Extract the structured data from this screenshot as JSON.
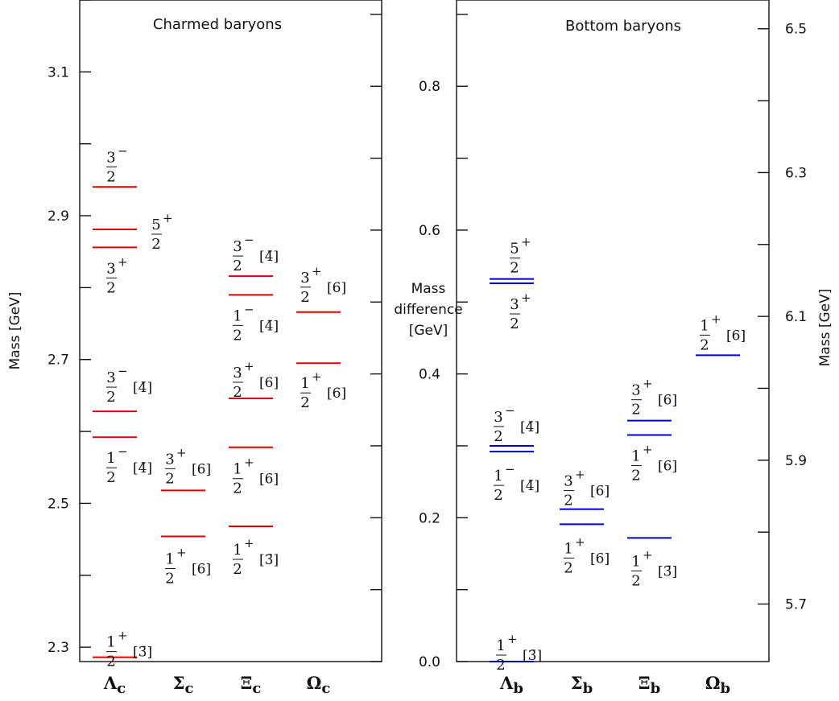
{
  "chart_data": [
    {
      "type": "level-diagram",
      "title": "Charmed baryons",
      "ylabel": "Mass [GeV]",
      "ylim": [
        2.28,
        3.2
      ],
      "ytick_labels": [
        "2.3",
        "2.5",
        "2.7",
        "2.9",
        "3.1"
      ],
      "color": "#e00000",
      "categories": [
        "Λc",
        "Σc",
        "Ξc",
        "Ωc"
      ],
      "levels": [
        {
          "category": "Λc",
          "mass": 2.286
        },
        {
          "category": "Λc",
          "mass": 2.592
        },
        {
          "category": "Λc",
          "mass": 2.628
        },
        {
          "category": "Λc",
          "mass": 2.856
        },
        {
          "category": "Λc",
          "mass": 2.881
        },
        {
          "category": "Λc",
          "mass": 2.94
        },
        {
          "category": "Σc",
          "mass": 2.454
        },
        {
          "category": "Σc",
          "mass": 2.518
        },
        {
          "category": "Ξc",
          "mass": 2.468
        },
        {
          "category": "Ξc",
          "mass": 2.578
        },
        {
          "category": "Ξc",
          "mass": 2.646
        },
        {
          "category": "Ξc",
          "mass": 2.79
        },
        {
          "category": "Ξc",
          "mass": 2.816
        },
        {
          "category": "Ωc",
          "mass": 2.695
        },
        {
          "category": "Ωc",
          "mass": 2.766
        }
      ],
      "annotations": [
        {
          "category": "Λc",
          "mass": 2.286,
          "num": "1",
          "parity": "+",
          "den": "2",
          "mult": "[3̄]"
        },
        {
          "category": "Λc",
          "mass": 2.592,
          "num": "1",
          "parity": "−",
          "den": "2",
          "mult": "[4̄]"
        },
        {
          "category": "Λc",
          "mass": 2.628,
          "num": "3",
          "parity": "−",
          "den": "2",
          "mult": "[4̄]"
        },
        {
          "category": "Λc",
          "mass": 2.856,
          "num": "3",
          "parity": "+",
          "den": "2",
          "mult": ""
        },
        {
          "category": "Λc",
          "mass": 2.881,
          "num": "5",
          "parity": "+",
          "den": "2",
          "mult": ""
        },
        {
          "category": "Λc",
          "mass": 2.94,
          "num": "3",
          "parity": "−",
          "den": "2",
          "mult": ""
        },
        {
          "category": "Σc",
          "mass": 2.454,
          "num": "1",
          "parity": "+",
          "den": "2",
          "mult": "[6]"
        },
        {
          "category": "Σc",
          "mass": 2.518,
          "num": "3",
          "parity": "+",
          "den": "2",
          "mult": "[6]"
        },
        {
          "category": "Ξc",
          "mass": 2.468,
          "num": "1",
          "parity": "+",
          "den": "2",
          "mult": "[3̄]"
        },
        {
          "category": "Ξc",
          "mass": 2.578,
          "num": "1",
          "parity": "+",
          "den": "2",
          "mult": "[6]"
        },
        {
          "category": "Ξc",
          "mass": 2.646,
          "num": "3",
          "parity": "+",
          "den": "2",
          "mult": "[6]"
        },
        {
          "category": "Ξc",
          "mass": 2.79,
          "num": "1",
          "parity": "−",
          "den": "2",
          "mult": "[4̄]"
        },
        {
          "category": "Ξc",
          "mass": 2.816,
          "num": "3",
          "parity": "−",
          "den": "2",
          "mult": "[4̄]"
        },
        {
          "category": "Ωc",
          "mass": 2.695,
          "num": "1",
          "parity": "+",
          "den": "2",
          "mult": "[6]"
        },
        {
          "category": "Ωc",
          "mass": 2.766,
          "num": "3",
          "parity": "+",
          "den": "2",
          "mult": "[6]"
        }
      ]
    },
    {
      "type": "level-diagram",
      "title": "Bottom baryons",
      "ylabel": "Mass [GeV]",
      "ylim": [
        5.62,
        6.54
      ],
      "ytick_labels": [
        "5.7",
        "5.9",
        "6.1",
        "6.3",
        "6.5"
      ],
      "color": "#0000cc",
      "categories": [
        "Λb",
        "Σb",
        "Ξb",
        "Ωb"
      ],
      "levels": [
        {
          "category": "Λb",
          "mass": 5.62
        },
        {
          "category": "Λb",
          "mass": 5.912
        },
        {
          "category": "Λb",
          "mass": 5.92
        },
        {
          "category": "Λb",
          "mass": 6.146
        },
        {
          "category": "Λb",
          "mass": 6.152
        },
        {
          "category": "Σb",
          "mass": 5.811
        },
        {
          "category": "Σb",
          "mass": 5.832
        },
        {
          "category": "Ξb",
          "mass": 5.792
        },
        {
          "category": "Ξb",
          "mass": 5.935
        },
        {
          "category": "Ξb",
          "mass": 5.955
        },
        {
          "category": "Ωb",
          "mass": 6.046
        }
      ],
      "annotations": [
        {
          "category": "Λb",
          "mass": 5.62,
          "num": "1",
          "parity": "+",
          "den": "2",
          "mult": "[3̄]"
        },
        {
          "category": "Λb",
          "mass": 5.912,
          "num": "1",
          "parity": "−",
          "den": "2",
          "mult": "[4̄]"
        },
        {
          "category": "Λb",
          "mass": 5.92,
          "num": "3",
          "parity": "−",
          "den": "2",
          "mult": "[4̄]"
        },
        {
          "category": "Λb",
          "mass": 6.146,
          "num": "3",
          "parity": "+",
          "den": "2",
          "mult": ""
        },
        {
          "category": "Λb",
          "mass": 6.152,
          "num": "5",
          "parity": "+",
          "den": "2",
          "mult": ""
        },
        {
          "category": "Σb",
          "mass": 5.811,
          "num": "1",
          "parity": "+",
          "den": "2",
          "mult": "[6]"
        },
        {
          "category": "Σb",
          "mass": 5.832,
          "num": "3",
          "parity": "+",
          "den": "2",
          "mult": "[6]"
        },
        {
          "category": "Ξb",
          "mass": 5.792,
          "num": "1",
          "parity": "+",
          "den": "2",
          "mult": "[3̄]"
        },
        {
          "category": "Ξb",
          "mass": 5.935,
          "num": "1",
          "parity": "+",
          "den": "2",
          "mult": "[6]"
        },
        {
          "category": "Ξb",
          "mass": 5.955,
          "num": "3",
          "parity": "+",
          "den": "2",
          "mult": "[6]"
        },
        {
          "category": "Ωb",
          "mass": 6.046,
          "num": "1",
          "parity": "+",
          "den": "2",
          "mult": "[6]"
        }
      ]
    }
  ],
  "shared_axis": {
    "label_lines": [
      "Mass",
      "difference",
      "[GeV]"
    ],
    "ylim": [
      0.0,
      0.92
    ],
    "tick_labels": [
      "0.0",
      "0.2",
      "0.4",
      "0.6",
      "0.8"
    ]
  }
}
